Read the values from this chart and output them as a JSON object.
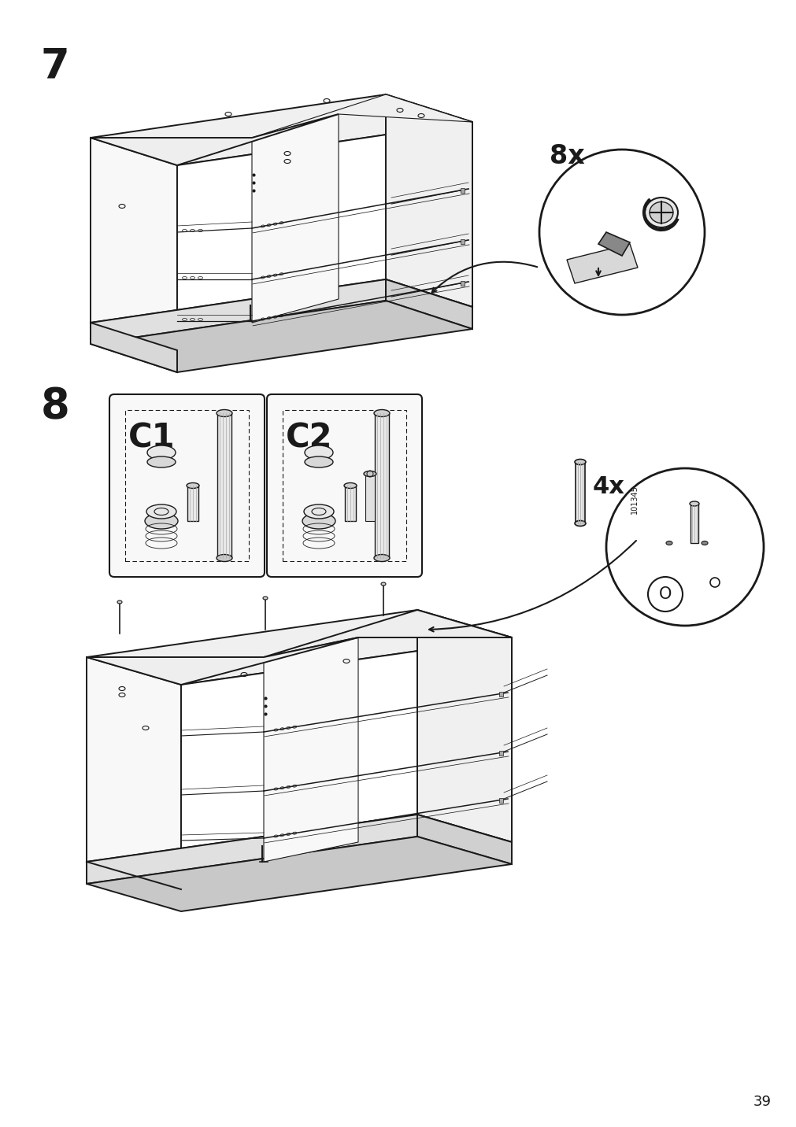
{
  "page_number": "39",
  "step7_label": "7",
  "step8_label": "8",
  "background_color": "#ffffff",
  "line_color": "#1a1a1a",
  "count_8x": "8x",
  "count_4x": "4x",
  "c1_label": "C1",
  "c2_label": "C2",
  "part_number": "101345"
}
